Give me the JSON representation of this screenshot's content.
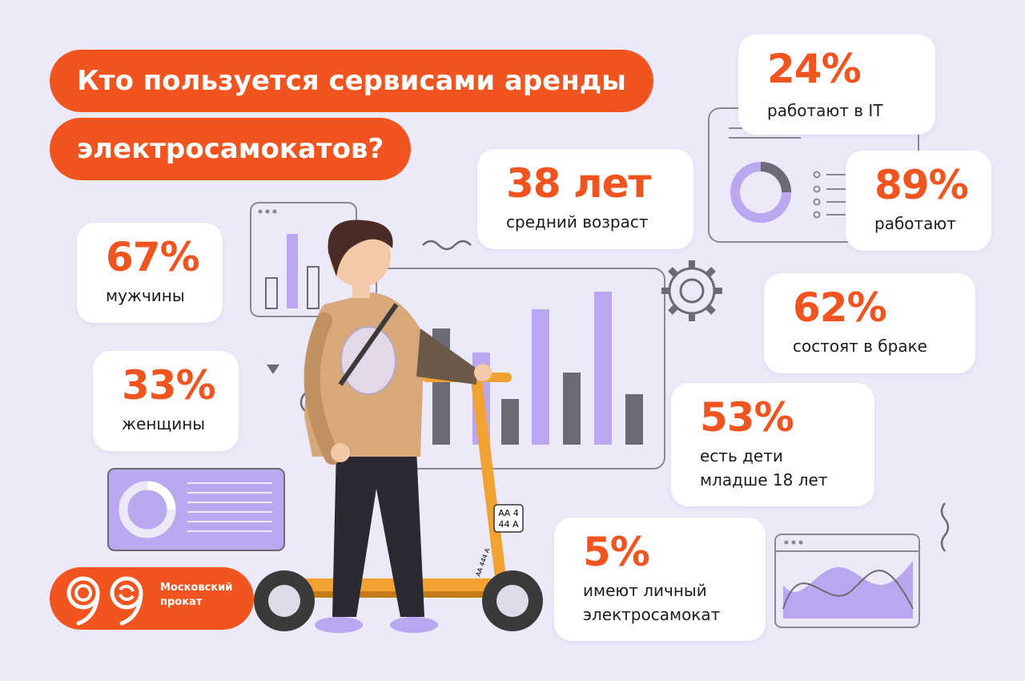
{
  "title": {
    "line1": "Кто пользуется сервисами аренды",
    "line2": "электросамокатов?"
  },
  "stats": {
    "it": {
      "value": "24%",
      "label": "работают в IT"
    },
    "age": {
      "value": "38 лет",
      "label": "средний возраст"
    },
    "employed": {
      "value": "89%",
      "label": "работают"
    },
    "men": {
      "value": "67%",
      "label": "мужчины"
    },
    "women": {
      "value": "33%",
      "label": "женщины"
    },
    "married": {
      "value": "62%",
      "label": "состоят в браке"
    },
    "children": {
      "value": "53%",
      "label_line1": "есть дети",
      "label_line2": "младше 18 лет"
    },
    "own_scooter": {
      "value": "5%",
      "label_line1": "имеют личный",
      "label_line2": "электросамокат"
    }
  },
  "logo": {
    "line1": "Московский",
    "line2": "прокат"
  },
  "scooter_plate": {
    "line1": "АА 4",
    "line2": "44 А",
    "side": "АА 444 А"
  },
  "colors": {
    "accent": "#f2541f",
    "background": "#ece9f8",
    "lavender": "#b9a7f0",
    "gray": "#6c6a74"
  }
}
